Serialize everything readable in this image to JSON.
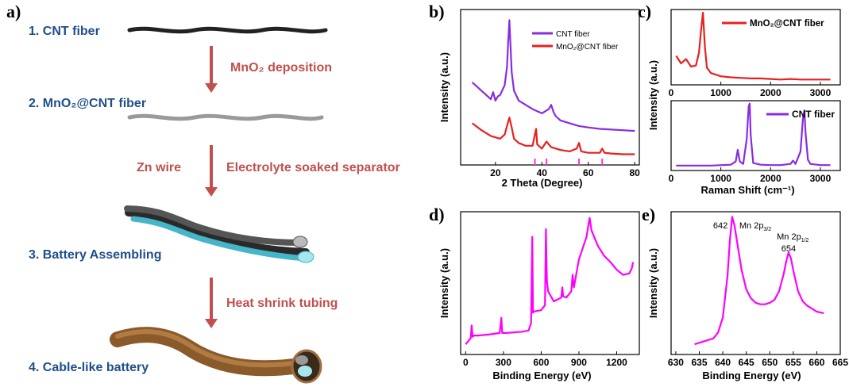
{
  "panel_labels": {
    "a": "a)",
    "b": "b)",
    "c": "c)",
    "d": "d)",
    "e": "e)"
  },
  "schematic": {
    "steps": [
      "1. CNT fiber",
      "2. MnO₂@CNT fiber",
      "3. Battery Assembling",
      "4. Cable-like  battery"
    ],
    "arrow_notes": {
      "mno2": "MnO₂ deposition",
      "zn": "Zn wire",
      "electrolyte": "Electrolyte soaked separator",
      "heat": "Heat shrink tubing"
    },
    "colors": {
      "steps": "#1f4e8c",
      "notes": "#c0504d",
      "arrows": "#c0504d",
      "separator": "#45b5c8",
      "tubing": "#8b5a2b"
    }
  },
  "chart_data": [
    {
      "id": "b",
      "type": "line",
      "xlabel": "2 Theta (Degree)",
      "ylabel": "Intensity (a.u.)",
      "xlim": [
        5,
        82
      ],
      "xticks": [
        20,
        40,
        60,
        80
      ],
      "y_ticks_shown": false,
      "legend": "top-right",
      "series": [
        {
          "name": "CNT fiber",
          "color": "#8a2be2",
          "x": [
            10,
            14,
            18,
            19,
            20,
            21,
            22,
            24,
            25,
            25.5,
            26,
            26.5,
            27,
            28,
            30,
            33,
            36,
            40,
            42,
            43,
            44,
            45,
            46,
            48,
            52,
            56,
            60,
            65,
            70,
            75,
            80
          ],
          "y": [
            7.6,
            7.0,
            6.4,
            6.9,
            6.3,
            6.6,
            6.7,
            7.4,
            8.7,
            10.5,
            12.0,
            10.2,
            8.3,
            7.0,
            6.3,
            6.0,
            5.7,
            5.4,
            5.6,
            5.7,
            6.0,
            5.5,
            5.2,
            4.9,
            4.7,
            4.5,
            4.4,
            4.3,
            4.25,
            4.2,
            4.15
          ]
        },
        {
          "name": "MnO₂@CNT fiber",
          "color": "#e8201f",
          "x": [
            10,
            14,
            18,
            22,
            24,
            25,
            26,
            27,
            28,
            30,
            33,
            36,
            37,
            37.5,
            38,
            40,
            42,
            44,
            48,
            52,
            55,
            56,
            57,
            60,
            65,
            66,
            67,
            70,
            75,
            80
          ],
          "y": [
            4.7,
            4.2,
            3.8,
            3.6,
            3.9,
            4.5,
            5.1,
            4.4,
            3.6,
            3.3,
            3.1,
            3.1,
            3.9,
            4.3,
            3.2,
            2.9,
            3.4,
            3.0,
            2.8,
            2.7,
            2.9,
            3.3,
            2.7,
            2.6,
            2.6,
            2.9,
            2.6,
            2.55,
            2.5,
            2.5
          ]
        }
      ],
      "reference_ticks": [
        37,
        42,
        56,
        66
      ],
      "reference_tick_color": "#ff33cc"
    },
    {
      "id": "c_top",
      "type": "line",
      "xlim": [
        0,
        3400
      ],
      "xticks": [
        0,
        1000,
        2000,
        3000
      ],
      "ylabel": "Intensity (a.u.)",
      "legend": "top-right",
      "series": [
        {
          "name": "MnO₂@CNT fiber",
          "color": "#e8201f",
          "x": [
            100,
            200,
            300,
            400,
            500,
            560,
            600,
            640,
            680,
            720,
            800,
            1000,
            1200,
            1400,
            1600,
            1800,
            2000,
            2200,
            2400,
            2600,
            2800,
            3000,
            3200
          ],
          "y": [
            3.2,
            2.5,
            2.9,
            2.2,
            2.3,
            3.5,
            5.5,
            7.2,
            4.0,
            2.1,
            1.6,
            1.3,
            1.2,
            1.15,
            1.1,
            1.1,
            1.05,
            1.0,
            1.05,
            1.0,
            1.0,
            1.0,
            1.0
          ]
        }
      ]
    },
    {
      "id": "c_bottom",
      "type": "line",
      "xlabel": "Raman Shift (cm⁻¹)",
      "xlim": [
        0,
        3400
      ],
      "xticks": [
        0,
        1000,
        2000,
        3000
      ],
      "legend": "top-right",
      "series": [
        {
          "name": "CNT fiber",
          "color": "#8a2be2",
          "x": [
            100,
            400,
            800,
            1200,
            1300,
            1340,
            1380,
            1450,
            1520,
            1560,
            1580,
            1600,
            1650,
            1800,
            2000,
            2200,
            2400,
            2450,
            2500,
            2600,
            2650,
            2680,
            2700,
            2750,
            2800,
            3000,
            3200
          ],
          "y": [
            0.3,
            0.3,
            0.3,
            0.4,
            0.8,
            2.2,
            0.8,
            0.5,
            3.5,
            7.5,
            7.8,
            4.0,
            0.6,
            0.4,
            0.35,
            0.35,
            0.5,
            0.9,
            0.5,
            2.0,
            6.0,
            7.0,
            4.5,
            1.0,
            0.5,
            0.35,
            0.35
          ]
        }
      ]
    },
    {
      "id": "d",
      "type": "line",
      "xlabel": "Binding Energy (eV)",
      "ylabel": "Intensity (a.u.)",
      "xlim": [
        -40,
        1380
      ],
      "xticks": [
        0,
        300,
        600,
        900,
        1200
      ],
      "series": [
        {
          "name": "",
          "color": "#ff00ff",
          "x": [
            0,
            40,
            48,
            55,
            65,
            100,
            200,
            270,
            284,
            290,
            320,
            450,
            500,
            520,
            529,
            535,
            545,
            600,
            630,
            638,
            642,
            646,
            655,
            700,
            760,
            768,
            775,
            800,
            840,
            850,
            860,
            900,
            960,
            985,
            1000,
            1050,
            1100,
            1150,
            1200,
            1250,
            1300,
            1320,
            1330
          ],
          "y": [
            0.5,
            1.0,
            2.0,
            1.1,
            1.2,
            1.2,
            1.3,
            1.4,
            2.6,
            1.4,
            1.4,
            1.5,
            1.6,
            2.2,
            9.0,
            3.0,
            3.1,
            3.2,
            3.6,
            9.6,
            7.0,
            5.5,
            4.7,
            3.9,
            4.2,
            5.0,
            4.3,
            4.2,
            4.7,
            6.0,
            5.0,
            7.2,
            9.0,
            10.5,
            9.5,
            8.3,
            7.5,
            7.0,
            6.4,
            6.0,
            6.1,
            6.5,
            7.0
          ]
        }
      ]
    },
    {
      "id": "e",
      "type": "line",
      "xlabel": "Binding Energy (eV)",
      "ylabel": "Intensity (a.u.)",
      "xlim": [
        629,
        665
      ],
      "xticks": [
        630,
        635,
        640,
        645,
        650,
        655,
        660,
        665
      ],
      "series": [
        {
          "name": "",
          "color": "#ff00ff",
          "x": [
            634,
            636,
            638,
            639,
            640,
            641,
            641.5,
            642,
            642.5,
            643,
            644,
            645,
            646,
            647,
            648,
            649,
            650,
            651,
            652,
            653,
            653.5,
            654,
            654.5,
            655,
            656,
            657,
            658,
            659,
            660,
            661.5
          ],
          "y": [
            0.6,
            0.8,
            1.0,
            1.4,
            2.4,
            5.2,
            7.6,
            9.2,
            8.6,
            7.6,
            5.6,
            4.3,
            3.7,
            3.4,
            3.3,
            3.3,
            3.4,
            3.6,
            4.2,
            5.4,
            6.2,
            6.8,
            6.4,
            5.6,
            4.2,
            3.5,
            3.2,
            3.0,
            2.8,
            2.7
          ]
        }
      ],
      "annotations": [
        {
          "text": "642",
          "x": 640.5
        },
        {
          "text": "Mn 2p",
          "sub": "3/2"
        },
        {
          "text": "Mn 2p",
          "sub": "1/2"
        },
        {
          "text": "654",
          "x": 654
        }
      ]
    }
  ]
}
